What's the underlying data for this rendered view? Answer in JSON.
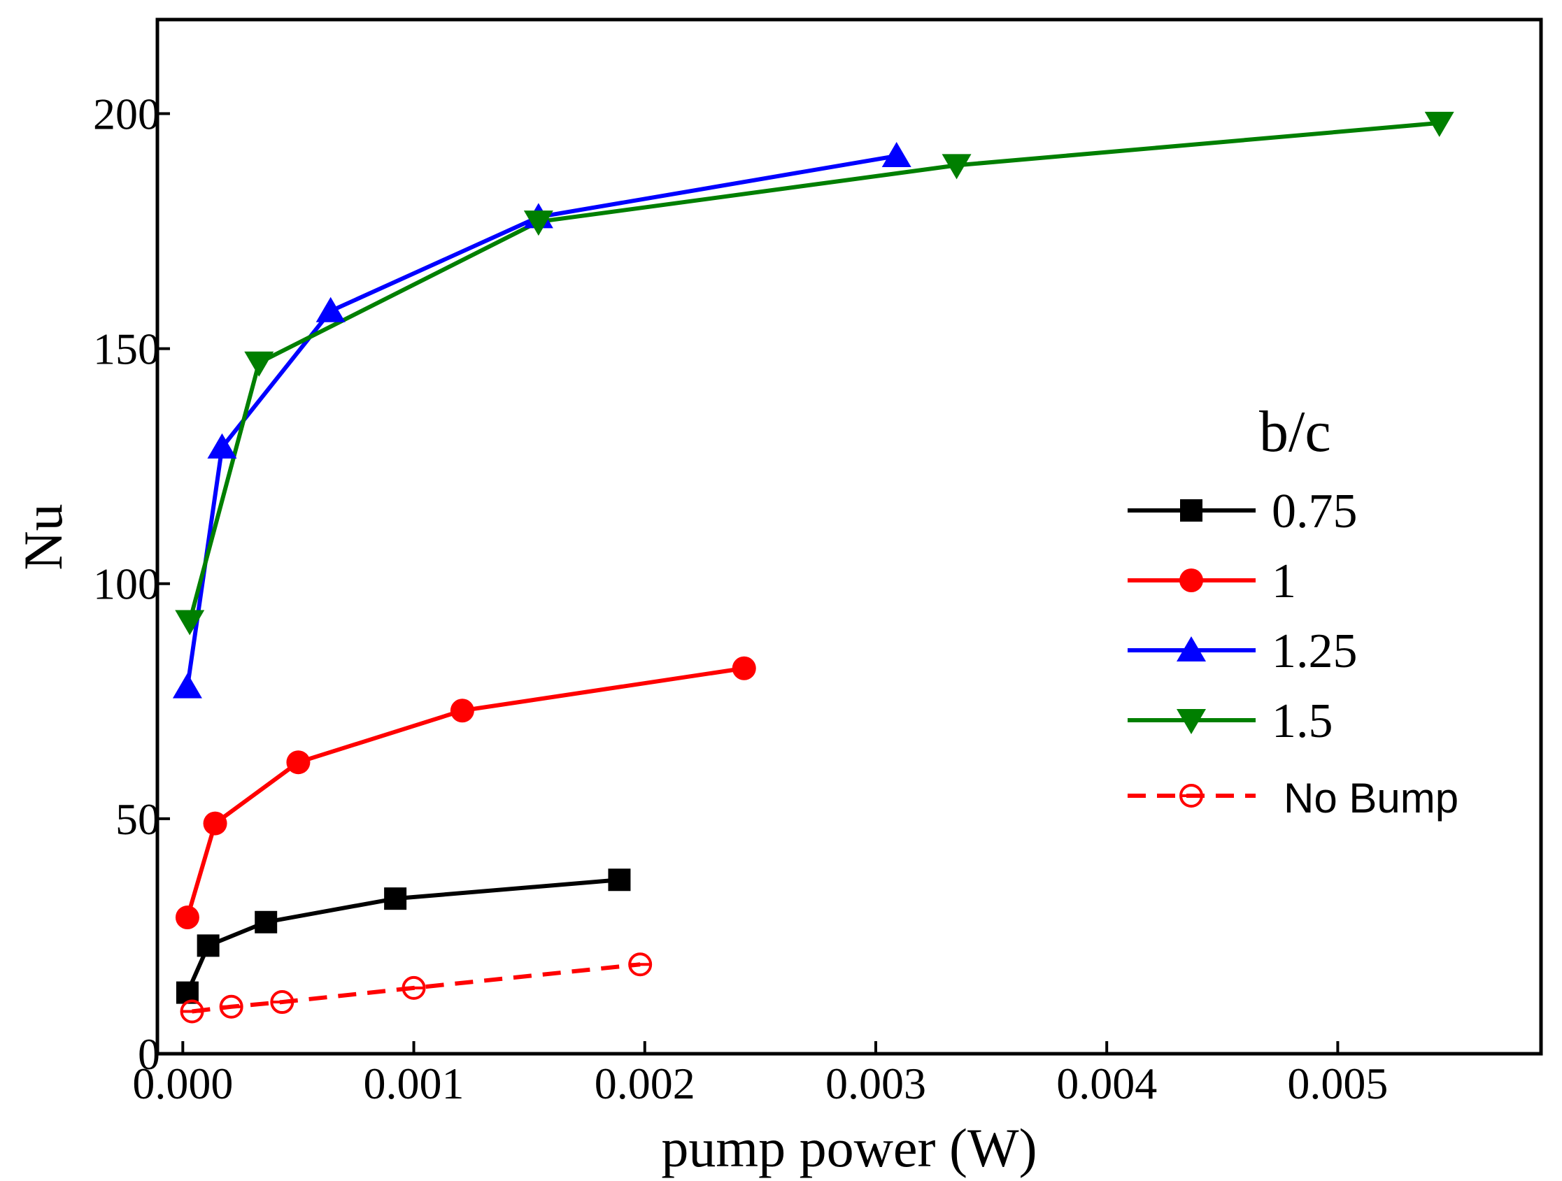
{
  "chart_data": {
    "type": "line",
    "title": "",
    "xlabel": "pump power (W)",
    "ylabel": "Nu",
    "xlim": [
      -0.00011,
      0.00588
    ],
    "ylim": [
      0,
      220
    ],
    "xticks": [
      0.0,
      0.001,
      0.002,
      0.003,
      0.004,
      0.005
    ],
    "xtick_labels": [
      "0.000",
      "0.001",
      "0.002",
      "0.003",
      "0.004",
      "0.005"
    ],
    "yticks": [
      0,
      50,
      100,
      150,
      200
    ],
    "ytick_labels": [
      "0",
      "50",
      "100",
      "150",
      "200"
    ],
    "grid": false,
    "legend": {
      "title": "b/c",
      "position": "right"
    },
    "series": [
      {
        "name": "0.75",
        "color": "#000000",
        "marker": "square",
        "dashed": false,
        "filled": true,
        "x": [
          2e-05,
          0.00011,
          0.00036,
          0.00092,
          0.00189
        ],
        "y": [
          13,
          23,
          28,
          33,
          37
        ]
      },
      {
        "name": "1",
        "color": "#ff0000",
        "marker": "circle",
        "dashed": false,
        "filled": true,
        "x": [
          2e-05,
          0.00014,
          0.0005,
          0.00121,
          0.00243
        ],
        "y": [
          29,
          49,
          62,
          73,
          82
        ]
      },
      {
        "name": "1.25",
        "color": "#0000ff",
        "marker": "triangle-up",
        "dashed": false,
        "filled": true,
        "x": [
          2e-05,
          0.00017,
          0.00064,
          0.00154,
          0.00309
        ],
        "y": [
          78,
          129,
          158,
          178,
          191
        ]
      },
      {
        "name": "1.5",
        "color": "#007f00",
        "marker": "triangle-down",
        "dashed": false,
        "filled": true,
        "x": [
          3e-05,
          0.00033,
          0.00154,
          0.00335,
          0.00544
        ],
        "y": [
          92,
          147,
          177,
          189,
          198
        ]
      },
      {
        "name": "No Bump",
        "color": "#ff0000",
        "marker": "open-circle",
        "dashed": true,
        "filled": false,
        "x": [
          4e-05,
          0.00021,
          0.00043,
          0.001,
          0.00198
        ],
        "y": [
          9,
          10,
          11,
          14,
          19
        ]
      }
    ]
  }
}
